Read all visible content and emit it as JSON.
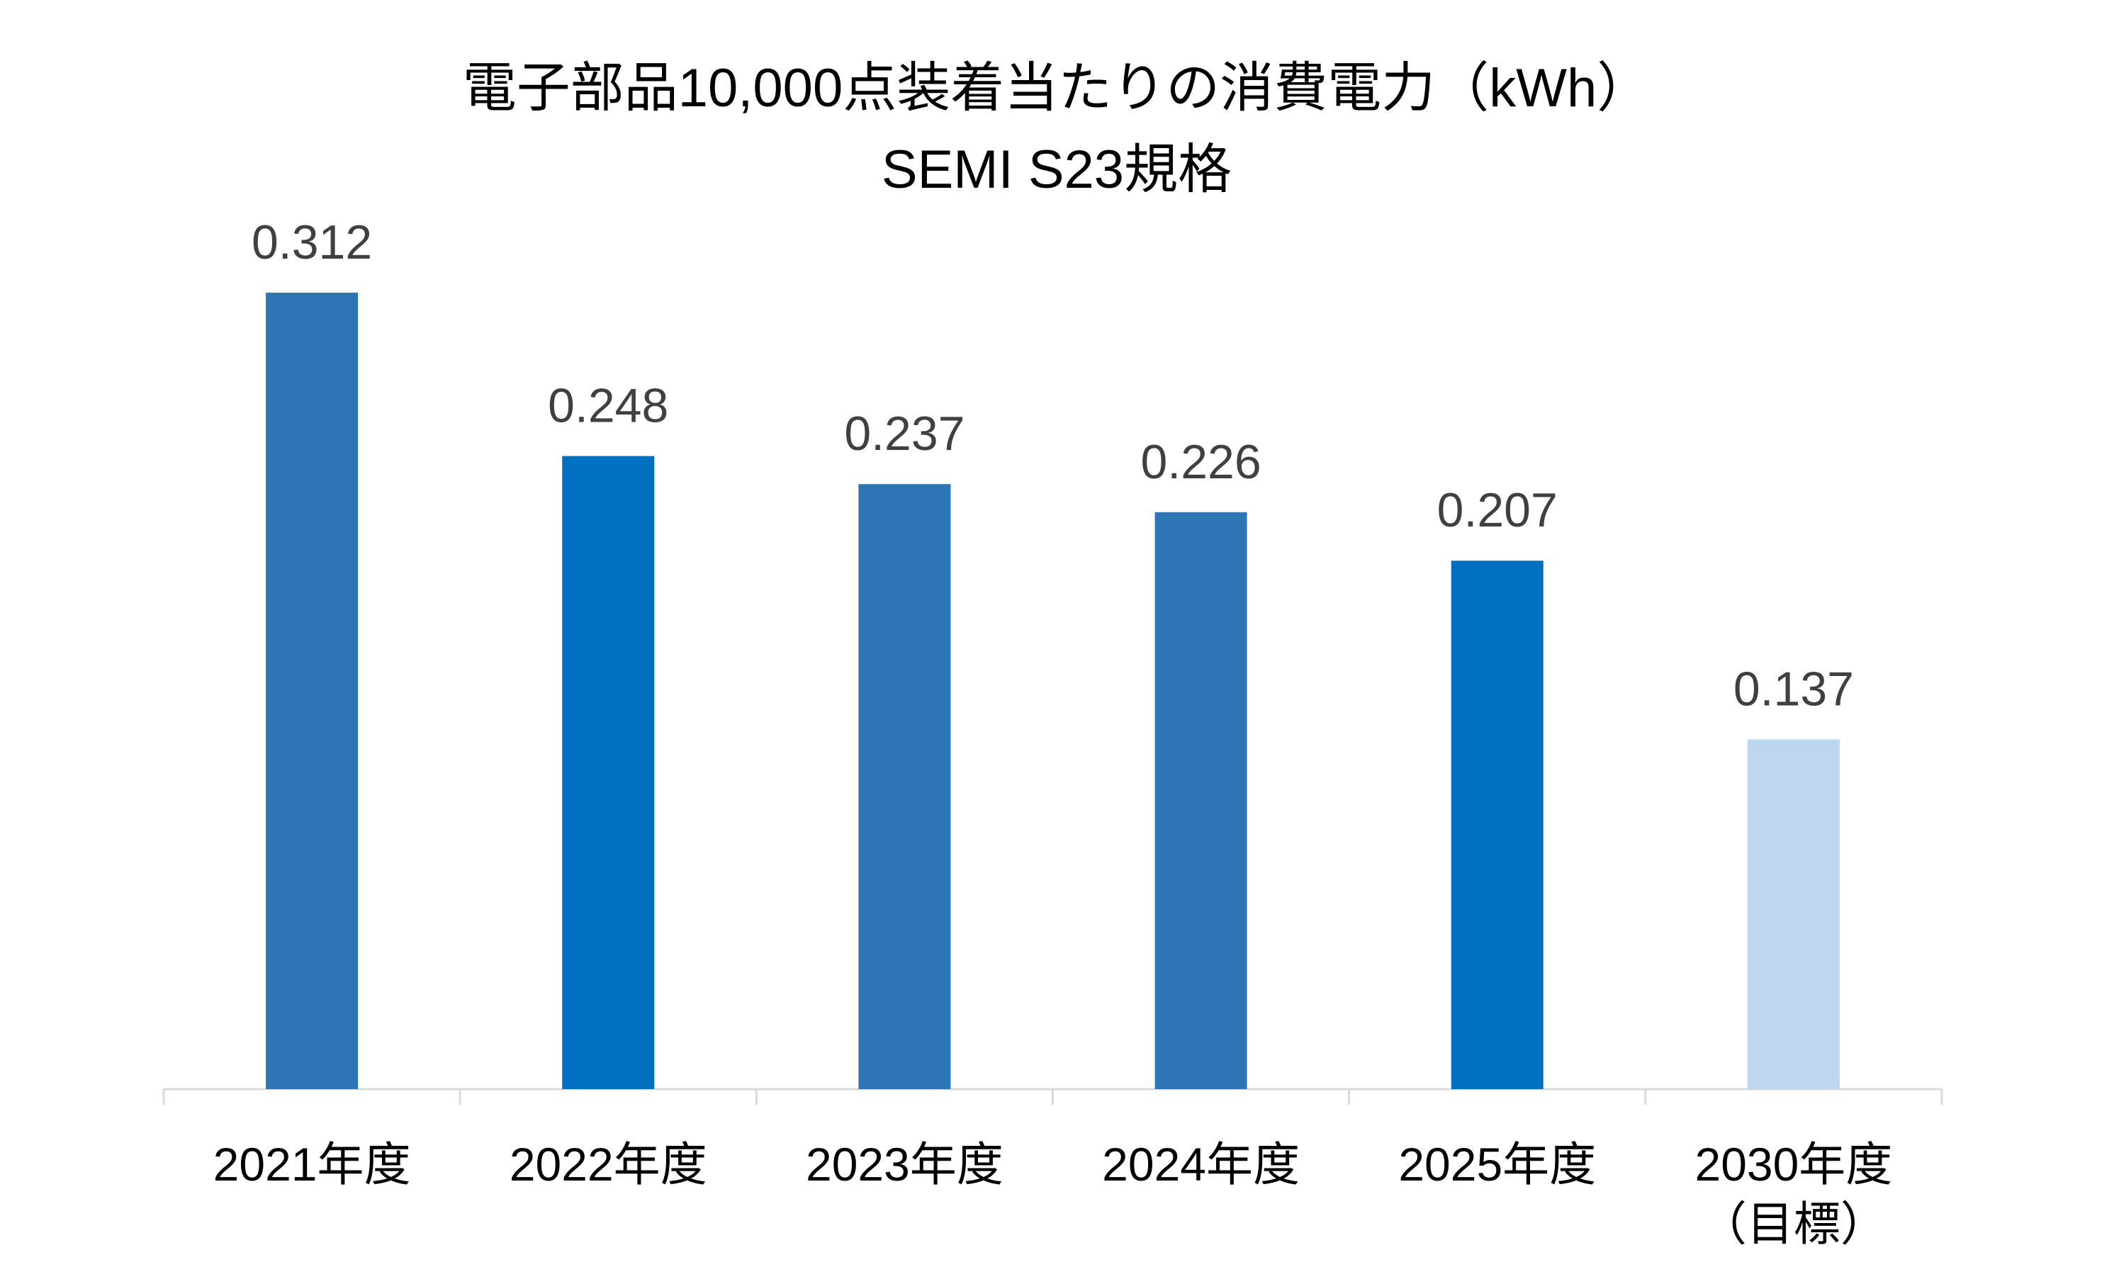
{
  "chart_data": {
    "type": "bar",
    "title": "電子部品10,000点装着当たりの消費電力（kWh）",
    "subtitle": "SEMI S23規格",
    "categories": [
      "2021年度",
      "2022年度",
      "2023年度",
      "2024年度",
      "2025年度",
      "2030年度\n（目標）"
    ],
    "values": [
      0.312,
      0.248,
      0.237,
      0.226,
      0.207,
      0.137
    ],
    "colors": [
      "#2e75b6",
      "#0070c0",
      "#2e75b6",
      "#2e75b6",
      "#0070c0",
      "#bdd7ee"
    ]
  }
}
